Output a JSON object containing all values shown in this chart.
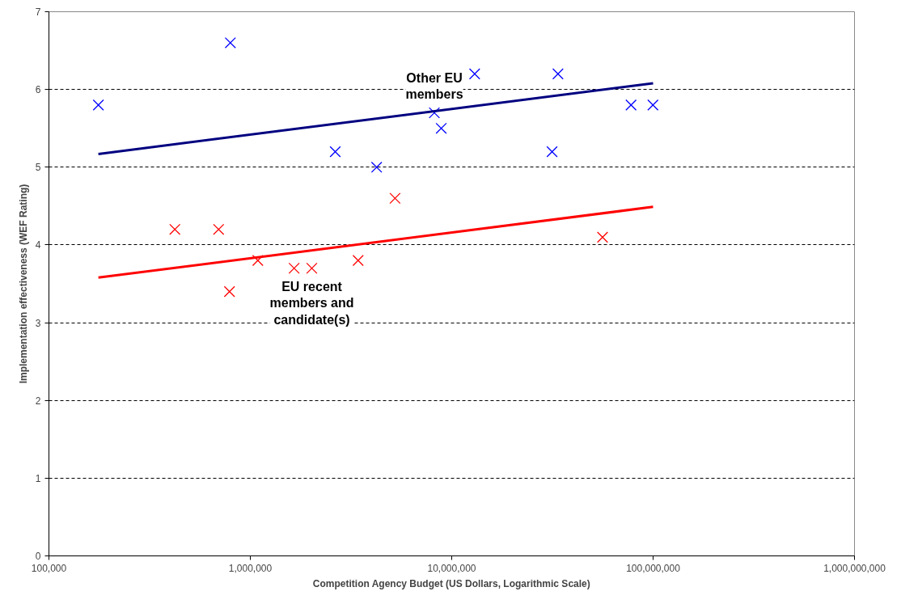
{
  "chart_data": {
    "type": "scatter",
    "xlabel": "Competition Agency Budget (US Dollars, Logarithmic Scale)",
    "ylabel": "Implementation effectiveness (WEF Rating)",
    "log": "x",
    "grid": "y",
    "legend": false,
    "xlim": [
      100000,
      1000000000
    ],
    "xticks": [
      {
        "value": 100000,
        "label": "100,000"
      },
      {
        "value": 1000000,
        "label": "1,000,000"
      },
      {
        "value": 10000000,
        "label": "10,000,000"
      },
      {
        "value": 100000000,
        "label": "100,000,000"
      },
      {
        "value": 1000000000,
        "label": "1,000,000,000"
      }
    ],
    "ylim": [
      0,
      7
    ],
    "yticks": [
      0,
      1,
      2,
      3,
      4,
      5,
      6,
      7
    ],
    "series": [
      {
        "name": "Other EU members",
        "color": "#0000ff",
        "marker": "cross",
        "x": [
          176000,
          796000,
          2640000,
          4240000,
          8200000,
          8870000,
          13000000,
          31500000,
          33700000,
          77700000,
          99800000
        ],
        "values": [
          5.8,
          6.6,
          5.2,
          5.0,
          5.7,
          5.5,
          6.2,
          5.2,
          6.2,
          5.8,
          5.8
        ]
      },
      {
        "name": "EU recent members and candidate(s)",
        "color": "#ff0000",
        "marker": "cross",
        "x": [
          422000,
          696000,
          788000,
          1090000,
          1650000,
          2020000,
          3430000,
          5230000,
          56100000
        ],
        "values": [
          4.2,
          4.2,
          3.4,
          3.8,
          3.7,
          3.7,
          3.8,
          4.6,
          4.1
        ]
      },
      {
        "type": "line",
        "color": "#000080",
        "x": [
          176000,
          100000000
        ],
        "values": [
          5.17,
          6.08
        ]
      },
      {
        "type": "line",
        "color": "#ff0000",
        "x": [
          176000,
          100000000
        ],
        "values": [
          3.58,
          4.49
        ]
      }
    ]
  }
}
